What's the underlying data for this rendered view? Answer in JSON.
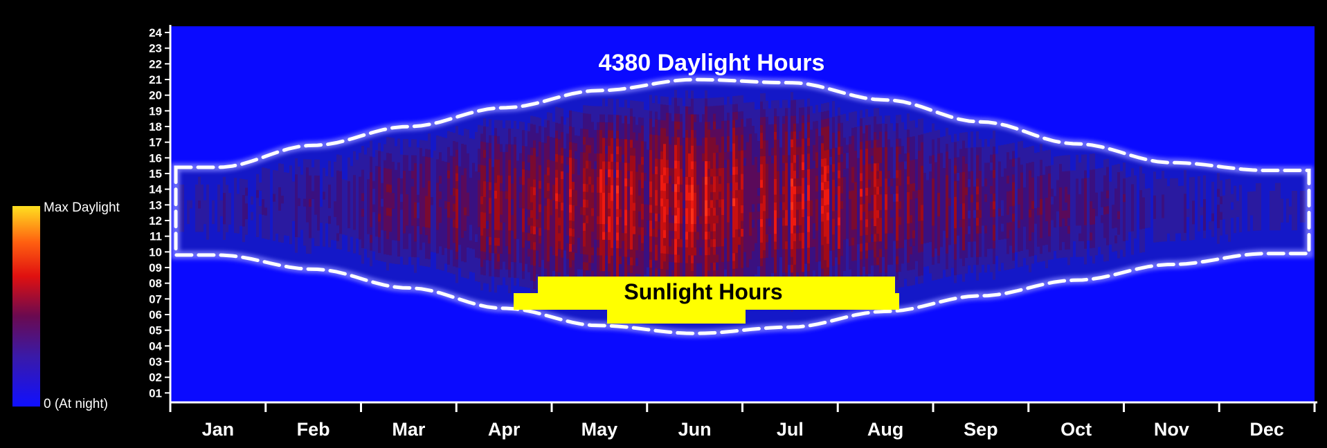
{
  "chart_data": {
    "type": "heatmap",
    "title": "4380 Daylight Hours",
    "annotation": "Sunlight Hours",
    "x_categories": [
      "Jan",
      "Feb",
      "Mar",
      "Apr",
      "May",
      "Jun",
      "Jul",
      "Aug",
      "Sep",
      "Oct",
      "Nov",
      "Dec"
    ],
    "y_ticks": [
      "01",
      "02",
      "03",
      "04",
      "05",
      "06",
      "07",
      "08",
      "09",
      "10",
      "11",
      "12",
      "13",
      "14",
      "15",
      "16",
      "17",
      "18",
      "19",
      "20",
      "21",
      "22",
      "23",
      "24"
    ],
    "y_range": [
      0,
      24
    ],
    "colorscale": {
      "max_label": "Max Daylight",
      "min_label": "0 (At night)",
      "colors": [
        "#1010ff",
        "#3a1aa8",
        "#5a0a5a",
        "#c00010",
        "#ff2a10",
        "#ff8a10",
        "#ffe020"
      ]
    },
    "daylight_envelope": {
      "months": [
        "Jan",
        "Feb",
        "Mar",
        "Apr",
        "May",
        "Jun",
        "Jul",
        "Aug",
        "Sep",
        "Oct",
        "Nov",
        "Dec"
      ],
      "sunrise_hour": [
        9.4,
        8.5,
        7.3,
        6.0,
        4.9,
        4.4,
        4.8,
        5.8,
        6.8,
        7.8,
        8.8,
        9.5
      ],
      "sunset_hour": [
        15.0,
        16.4,
        17.6,
        18.8,
        19.9,
        20.6,
        20.4,
        19.3,
        17.9,
        16.5,
        15.3,
        14.8
      ]
    },
    "monthly_peak_intensity": [
      0.25,
      0.35,
      0.55,
      0.75,
      0.92,
      0.95,
      0.9,
      0.8,
      0.6,
      0.42,
      0.3,
      0.22
    ],
    "background_color": "#0a0aff",
    "annotation_color": "#ffff00"
  }
}
